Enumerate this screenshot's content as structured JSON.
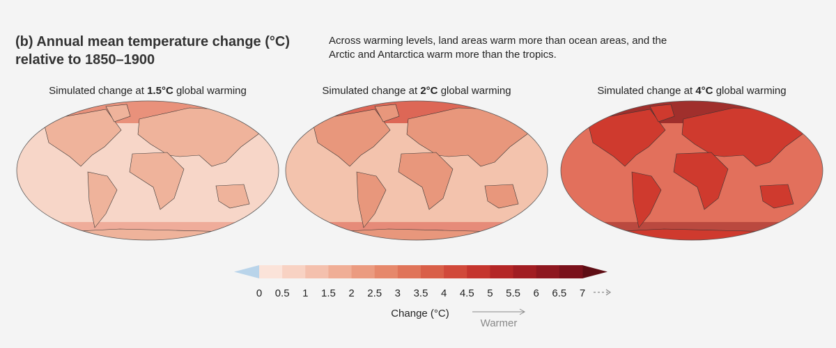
{
  "header": {
    "title_lines": [
      "(b) Annual mean temperature change (°C)",
      "relative to 1850–1900"
    ],
    "description_lines": [
      "Across warming levels, land areas warm more than ocean areas, and the",
      "Arctic and Antarctica warm more than the tropics."
    ]
  },
  "panels": [
    {
      "prefix": "Simulated change at ",
      "level": "1.5°C",
      "suffix": " global warming",
      "ocean_color": "#f7d6c8",
      "land_color": "#efb39b",
      "polar_color": "#e47a62"
    },
    {
      "prefix": "Simulated change at ",
      "level": "2°C",
      "suffix": " global warming",
      "ocean_color": "#f3c3ad",
      "land_color": "#e8977c",
      "polar_color": "#d6483a"
    },
    {
      "prefix": "Simulated change at ",
      "level": "4°C",
      "suffix": " global warming",
      "ocean_color": "#e2705c",
      "land_color": "#cf3a2e",
      "polar_color": "#8a1a1c"
    }
  ],
  "colorbar": {
    "ticks": [
      0,
      0.5,
      1,
      1.5,
      2,
      2.5,
      3,
      3.5,
      4,
      4.5,
      5,
      5.5,
      6,
      6.5,
      7
    ],
    "colors": [
      "#fbe3d9",
      "#f8d2c3",
      "#f4c0ad",
      "#f0ae96",
      "#eb9b80",
      "#e6886b",
      "#e07459",
      "#d95f48",
      "#d1493a",
      "#c5352e",
      "#b42626",
      "#a11d22",
      "#8e171f",
      "#7a111b"
    ],
    "under_color": "#b9d4ea",
    "over_color": "#5e0d14",
    "label": "Change (°C)",
    "arrow_label": "Warmer"
  }
}
